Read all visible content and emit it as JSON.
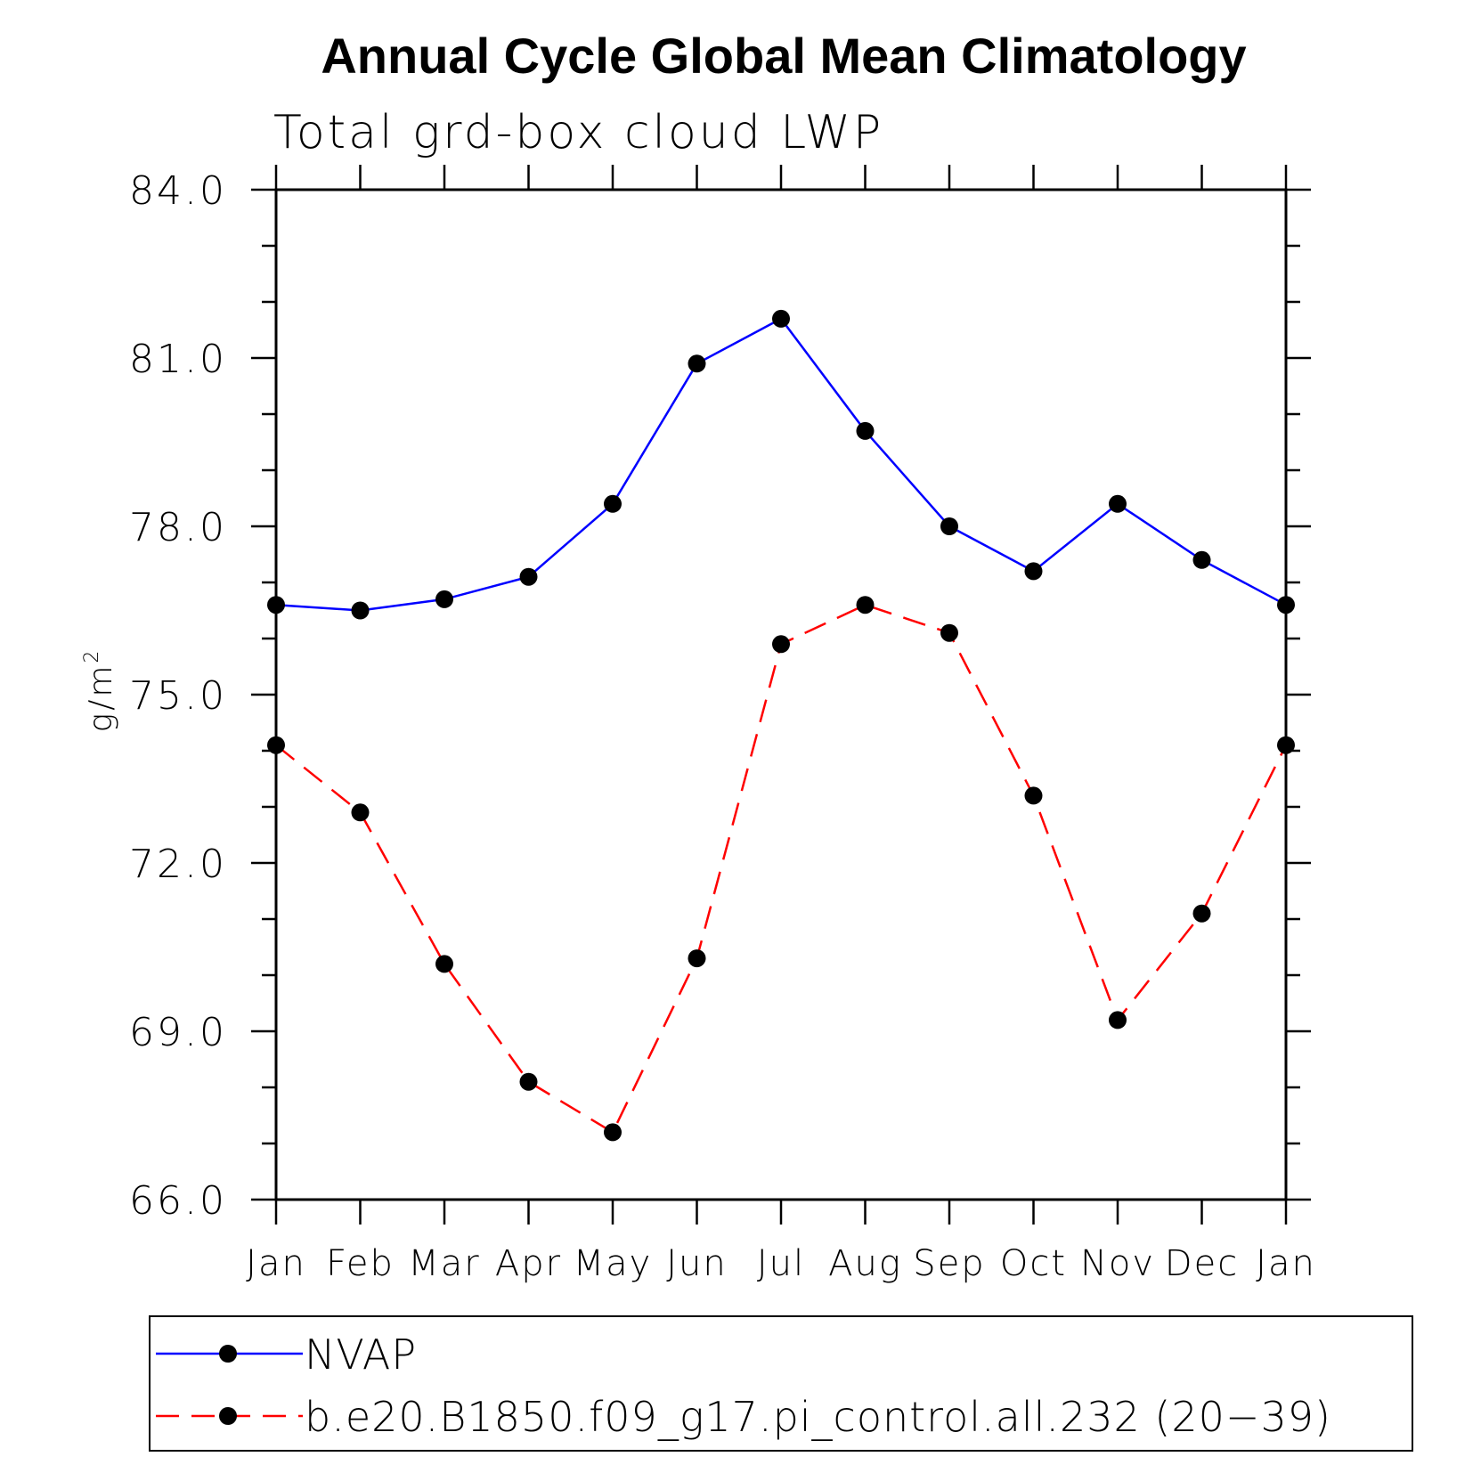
{
  "chart_data": {
    "type": "line",
    "title": "Annual Cycle Global Mean Climatology",
    "subtitle": "Total grd-box cloud LWP",
    "ylabel": "g/m",
    "ylabel_superscript": "2",
    "ylim": [
      66.0,
      84.0
    ],
    "ytick_values": [
      66.0,
      69.0,
      72.0,
      75.0,
      78.0,
      81.0,
      84.0
    ],
    "ytick_labels": [
      "66.0",
      "69.0",
      "72.0",
      "75.0",
      "78.0",
      "81.0",
      "84.0"
    ],
    "categories": [
      "Jan",
      "Feb",
      "Mar",
      "Apr",
      "May",
      "Jun",
      "Jul",
      "Aug",
      "Sep",
      "Oct",
      "Nov",
      "Dec",
      "Jan"
    ],
    "grid": false,
    "legend_position": "bottom",
    "series": [
      {
        "name": "NVAP",
        "color": "#0000ff",
        "dashed": false,
        "values": [
          76.6,
          76.5,
          76.7,
          77.1,
          78.4,
          80.9,
          81.7,
          79.7,
          78.0,
          77.2,
          78.4,
          77.4,
          76.6
        ]
      },
      {
        "name": "b.e20.B1850.f09_g17.pi_control.all.232 (20−39)",
        "color": "#ff0000",
        "dashed": true,
        "values": [
          74.1,
          72.9,
          70.2,
          68.1,
          67.2,
          70.3,
          75.9,
          76.6,
          76.1,
          73.2,
          69.2,
          71.1,
          74.1
        ]
      }
    ]
  }
}
